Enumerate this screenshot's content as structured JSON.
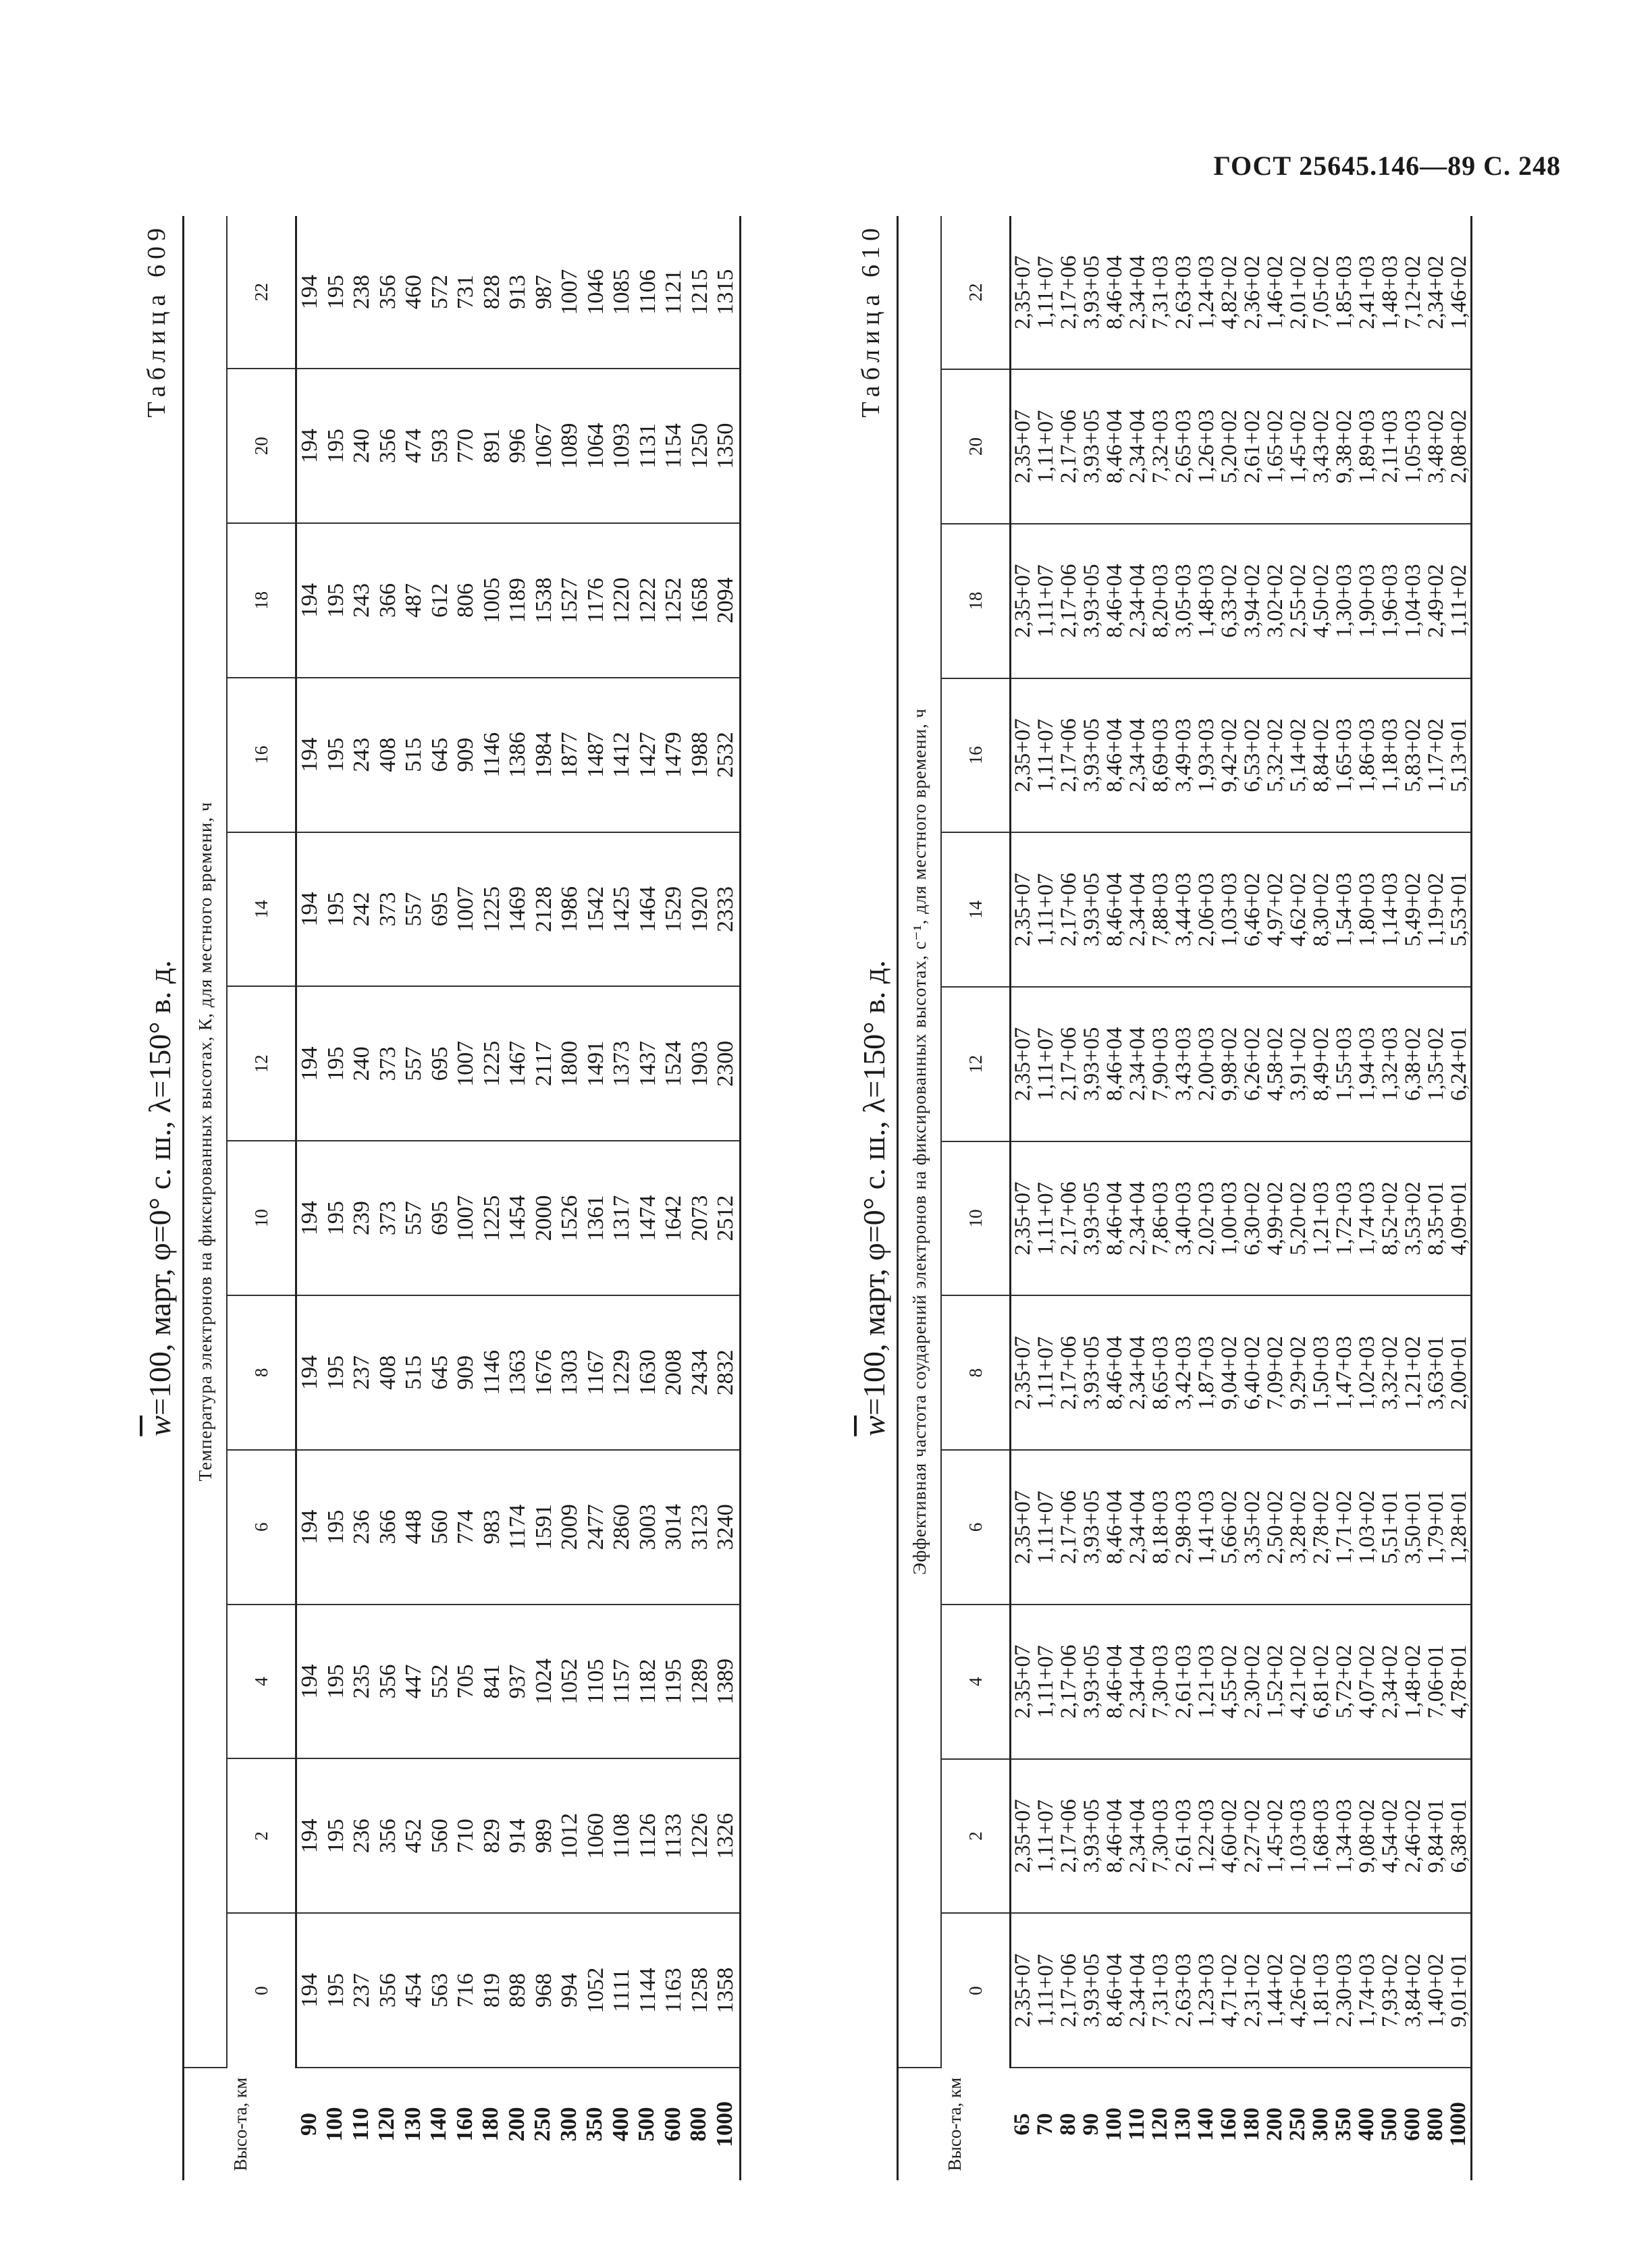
{
  "header": "ГОСТ 25645.146—89  С. 248",
  "table609": {
    "label": "Таблица 609",
    "caption_prefix": "w",
    "caption": "=100, март, φ=0° с. ш., λ=150° в. д.",
    "alt_header": "Высо-та, км",
    "group_header": "Температура электронов на фиксированных высотах, К, для местного времени, ч",
    "hours": [
      "0",
      "2",
      "4",
      "6",
      "8",
      "10",
      "12",
      "14",
      "16",
      "18",
      "20",
      "22"
    ],
    "altitudes": [
      "90",
      "100",
      "110",
      "120",
      "130",
      "140",
      "160",
      "180",
      "200",
      "250",
      "300",
      "350",
      "400",
      "500",
      "600",
      "800",
      "1000"
    ],
    "columns": [
      [
        "194",
        "195",
        "237",
        "356",
        "454",
        "563",
        "716",
        "819",
        "898",
        "968",
        "994",
        "1052",
        "1111",
        "1144",
        "1163",
        "1258",
        "1358"
      ],
      [
        "194",
        "195",
        "236",
        "356",
        "452",
        "560",
        "710",
        "829",
        "914",
        "989",
        "1012",
        "1060",
        "1108",
        "1126",
        "1133",
        "1226",
        "1326"
      ],
      [
        "194",
        "195",
        "235",
        "356",
        "447",
        "552",
        "705",
        "841",
        "937",
        "1024",
        "1052",
        "1105",
        "1157",
        "1182",
        "1195",
        "1289",
        "1389"
      ],
      [
        "194",
        "195",
        "236",
        "366",
        "448",
        "560",
        "774",
        "983",
        "1174",
        "1591",
        "2009",
        "2477",
        "2860",
        "3003",
        "3014",
        "3123",
        "3240"
      ],
      [
        "194",
        "195",
        "237",
        "408",
        "515",
        "645",
        "909",
        "1146",
        "1363",
        "1676",
        "1303",
        "1167",
        "1229",
        "1630",
        "2008",
        "2434",
        "2832"
      ],
      [
        "194",
        "195",
        "239",
        "373",
        "557",
        "695",
        "1007",
        "1225",
        "1454",
        "2000",
        "1526",
        "1361",
        "1317",
        "1474",
        "1642",
        "2073",
        "2512"
      ],
      [
        "194",
        "195",
        "240",
        "373",
        "557",
        "695",
        "1007",
        "1225",
        "1467",
        "2117",
        "1800",
        "1491",
        "1373",
        "1437",
        "1524",
        "1903",
        "2300"
      ],
      [
        "194",
        "195",
        "242",
        "373",
        "557",
        "695",
        "1007",
        "1225",
        "1469",
        "2128",
        "1986",
        "1542",
        "1425",
        "1464",
        "1529",
        "1920",
        "2333"
      ],
      [
        "194",
        "195",
        "243",
        "408",
        "515",
        "645",
        "909",
        "1146",
        "1386",
        "1984",
        "1877",
        "1487",
        "1412",
        "1427",
        "1479",
        "1988",
        "2532"
      ],
      [
        "194",
        "195",
        "243",
        "366",
        "487",
        "612",
        "806",
        "1005",
        "1189",
        "1538",
        "1527",
        "1176",
        "1220",
        "1222",
        "1252",
        "1658",
        "2094"
      ],
      [
        "194",
        "195",
        "240",
        "356",
        "474",
        "593",
        "770",
        "891",
        "996",
        "1067",
        "1089",
        "1064",
        "1093",
        "1131",
        "1154",
        "1250",
        "1350"
      ],
      [
        "194",
        "195",
        "238",
        "356",
        "460",
        "572",
        "731",
        "828",
        "913",
        "987",
        "1007",
        "1046",
        "1085",
        "1106",
        "1121",
        "1215",
        "1315"
      ]
    ]
  },
  "table610": {
    "label": "Таблица 610",
    "caption_prefix": "w",
    "caption": "=100, март, φ=0° с. ш., λ=150° в. д.",
    "alt_header": "Высо-та, км",
    "group_header": "Эффективная частота соударений электронов на фиксированных высотах, с⁻¹, для местного времени, ч",
    "hours": [
      "0",
      "2",
      "4",
      "6",
      "8",
      "10",
      "12",
      "14",
      "16",
      "18",
      "20",
      "22"
    ],
    "altitudes": [
      "65",
      "70",
      "80",
      "90",
      "100",
      "110",
      "120",
      "130",
      "140",
      "160",
      "180",
      "200",
      "250",
      "300",
      "350",
      "400",
      "500",
      "600",
      "800",
      "1000"
    ],
    "columns": [
      [
        "2,35+07",
        "1,11+07",
        "2,17+06",
        "3,93+05",
        "8,46+04",
        "2,34+04",
        "7,31+03",
        "2,63+03",
        "1,23+03",
        "4,71+02",
        "2,31+02",
        "1,44+02",
        "4,26+02",
        "1,81+03",
        "2,30+03",
        "1,74+03",
        "7,93+02",
        "3,84+02",
        "1,40+02",
        "9,01+01"
      ],
      [
        "2,35+07",
        "1,11+07",
        "2,17+06",
        "3,93+05",
        "8,46+04",
        "2,34+04",
        "7,30+03",
        "2,61+03",
        "1,22+03",
        "4,60+02",
        "2,27+02",
        "1,45+02",
        "1,03+03",
        "1,68+03",
        "1,34+03",
        "9,08+02",
        "4,54+02",
        "2,46+02",
        "9,84+01",
        "6,38+01"
      ],
      [
        "2,35+07",
        "1,11+07",
        "2,17+06",
        "3,93+05",
        "8,46+04",
        "2,34+04",
        "7,30+03",
        "2,61+03",
        "1,21+03",
        "4,55+02",
        "2,30+02",
        "1,52+02",
        "4,21+02",
        "6,81+02",
        "5,72+02",
        "4,07+02",
        "2,34+02",
        "1,48+02",
        "7,06+01",
        "4,78+01"
      ],
      [
        "2,35+07",
        "1,11+07",
        "2,17+06",
        "3,93+05",
        "8,46+04",
        "2,34+04",
        "8,18+03",
        "2,98+03",
        "1,41+03",
        "5,66+02",
        "3,35+02",
        "2,50+02",
        "3,28+02",
        "2,78+02",
        "1,71+02",
        "1,03+02",
        "5,51+01",
        "3,50+01",
        "1,79+01",
        "1,28+01"
      ],
      [
        "2,35+07",
        "1,11+07",
        "2,17+06",
        "3,93+05",
        "8,46+04",
        "2,34+04",
        "8,65+03",
        "3,42+03",
        "1,87+03",
        "9,04+02",
        "6,40+02",
        "7,09+02",
        "9,29+02",
        "1,50+03",
        "1,47+03",
        "1,02+03",
        "3,32+02",
        "1,21+02",
        "3,63+01",
        "2,00+01"
      ],
      [
        "2,35+07",
        "1,11+07",
        "2,17+06",
        "3,93+05",
        "8,46+04",
        "2,34+04",
        "7,86+03",
        "3,40+03",
        "2,02+03",
        "1,00+03",
        "6,30+02",
        "4,99+02",
        "5,20+02",
        "1,21+03",
        "1,72+03",
        "1,74+03",
        "8,52+02",
        "3,53+02",
        "8,35+01",
        "4,09+01"
      ],
      [
        "2,35+07",
        "1,11+07",
        "2,17+06",
        "3,93+05",
        "8,46+04",
        "2,34+04",
        "7,90+03",
        "3,43+03",
        "2,00+03",
        "9,98+02",
        "6,26+02",
        "4,58+02",
        "3,91+02",
        "8,49+02",
        "1,55+03",
        "1,94+03",
        "1,32+03",
        "6,38+02",
        "1,35+02",
        "6,24+01"
      ],
      [
        "2,35+07",
        "1,11+07",
        "2,17+06",
        "3,93+05",
        "8,46+04",
        "2,34+04",
        "7,88+03",
        "3,44+03",
        "2,06+03",
        "1,03+03",
        "6,46+02",
        "4,97+02",
        "4,62+02",
        "8,30+02",
        "1,54+03",
        "1,80+03",
        "1,14+03",
        "5,49+02",
        "1,19+02",
        "5,53+01"
      ],
      [
        "2,35+07",
        "1,11+07",
        "2,17+06",
        "3,93+05",
        "8,46+04",
        "2,34+04",
        "8,69+03",
        "3,49+03",
        "1,93+03",
        "9,42+02",
        "6,53+02",
        "5,32+02",
        "5,14+02",
        "8,84+02",
        "1,65+03",
        "1,86+03",
        "1,18+03",
        "5,83+02",
        "1,17+02",
        "5,13+01"
      ],
      [
        "2,35+07",
        "1,11+07",
        "2,17+06",
        "3,93+05",
        "8,46+04",
        "2,34+04",
        "8,20+03",
        "3,05+03",
        "1,48+03",
        "6,33+02",
        "3,94+02",
        "3,02+02",
        "2,55+02",
        "4,50+02",
        "1,30+03",
        "1,90+03",
        "1,96+03",
        "1,04+03",
        "2,49+02",
        "1,11+02"
      ],
      [
        "2,35+07",
        "1,11+07",
        "2,17+06",
        "3,93+05",
        "8,46+04",
        "2,34+04",
        "7,32+03",
        "2,65+03",
        "1,26+03",
        "5,20+02",
        "2,61+02",
        "1,65+02",
        "1,45+02",
        "3,43+02",
        "9,38+02",
        "1,89+03",
        "2,11+03",
        "1,05+03",
        "3,48+02",
        "2,08+02"
      ],
      [
        "2,35+07",
        "1,11+07",
        "2,17+06",
        "3,93+05",
        "8,46+04",
        "2,34+04",
        "7,31+03",
        "2,63+03",
        "1,24+03",
        "4,82+02",
        "2,36+02",
        "1,46+02",
        "2,01+02",
        "7,05+02",
        "1,85+03",
        "2,41+03",
        "1,48+03",
        "7,12+02",
        "2,34+02",
        "1,46+02"
      ]
    ]
  }
}
